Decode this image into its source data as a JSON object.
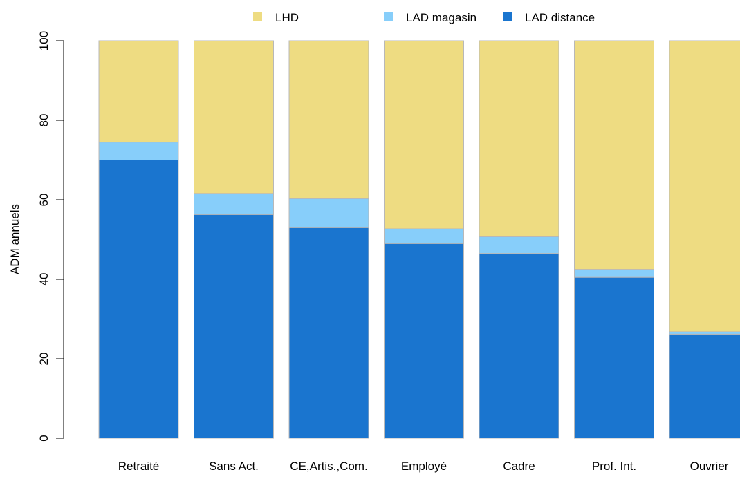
{
  "chart_data": {
    "type": "bar",
    "stacked": true,
    "ylabel": "ADM annuels",
    "xlabel": "",
    "ylim": [
      0,
      100
    ],
    "yticks": [
      "0",
      "20",
      "40",
      "60",
      "80",
      "100"
    ],
    "grid": false,
    "legend_position": "top",
    "categories": [
      "Retraité",
      "Sans Act.",
      "CE,Artis.,Com.",
      "Employé",
      "Cadre",
      "Prof. Int.",
      "Ouvrier"
    ],
    "series": [
      {
        "name": "LAD distance",
        "color": "#1a75cf",
        "values": [
          70.0,
          56.3,
          53.0,
          49.0,
          46.5,
          40.5,
          26.2
        ]
      },
      {
        "name": "LAD magasin",
        "color": "#87cefa",
        "values": [
          4.5,
          5.3,
          7.3,
          3.7,
          4.2,
          2.0,
          0.6
        ]
      },
      {
        "name": "LHD",
        "color": "#eedc82",
        "values": [
          25.5,
          38.4,
          39.7,
          47.3,
          49.3,
          57.5,
          73.2
        ]
      }
    ],
    "legend_order": [
      "LHD",
      "LAD magasin",
      "LAD distance"
    ]
  }
}
